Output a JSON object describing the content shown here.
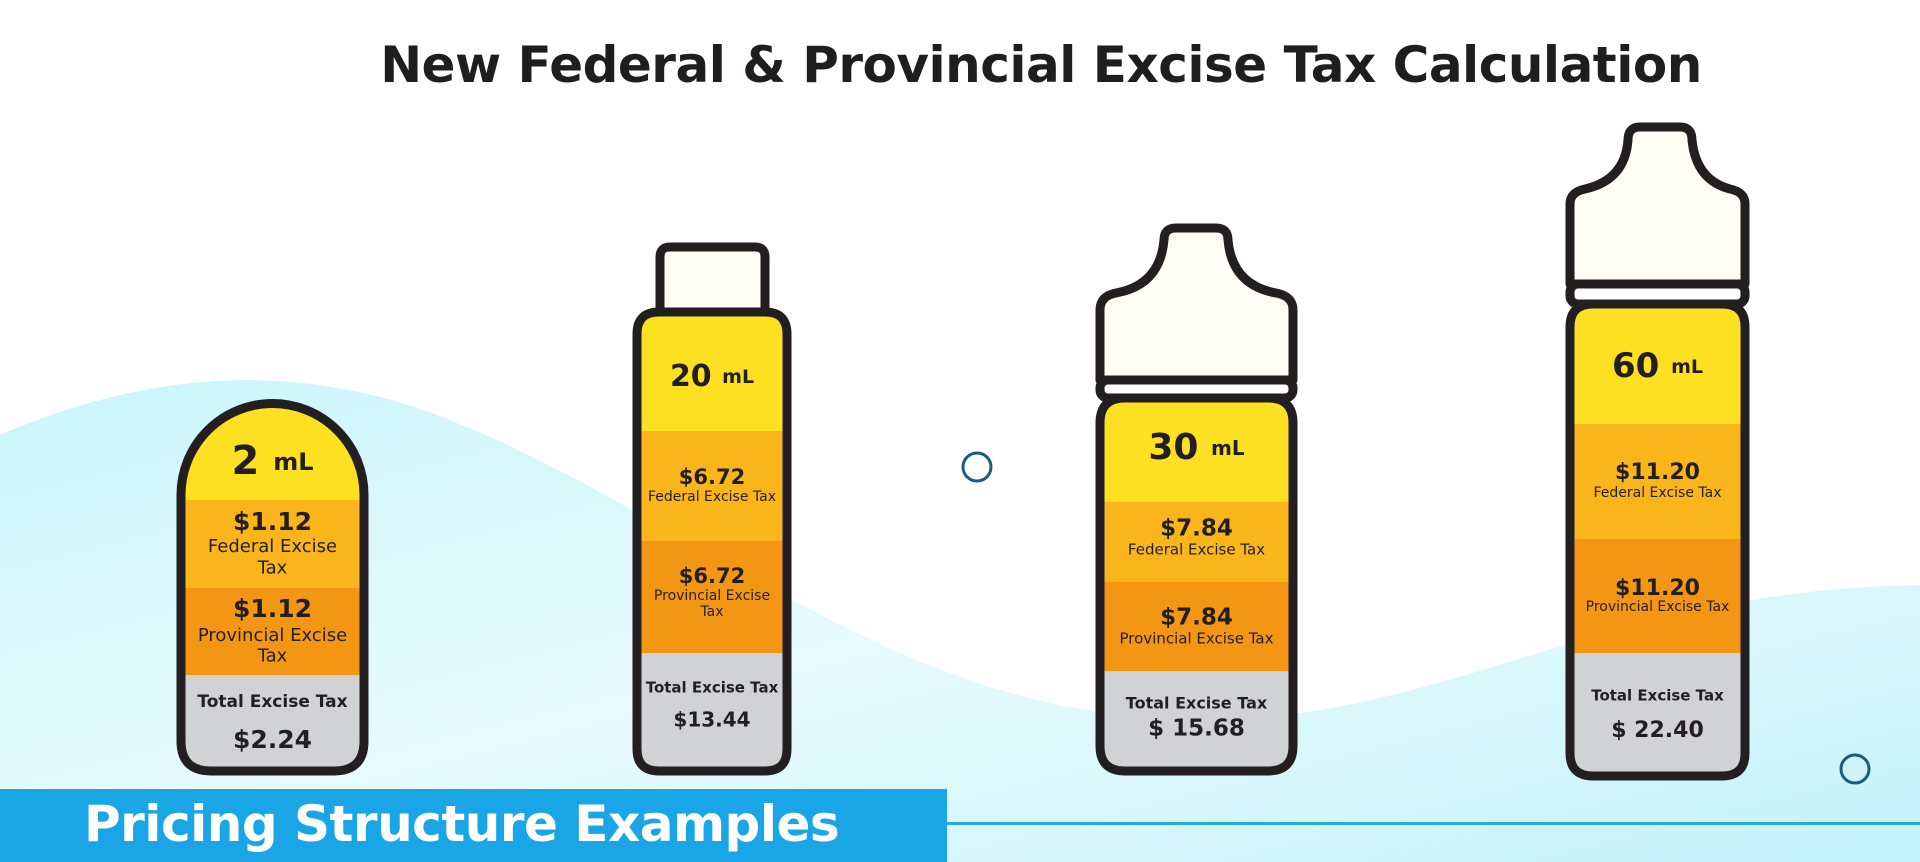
{
  "title": "New Federal & Provincial Excise Tax Calculation",
  "banner": "Pricing Structure Examples",
  "colors": {
    "volume": "#fde021",
    "federal": "#f9b51a",
    "provincial": "#f39614",
    "total": "#d1d2d4",
    "cap": "#fffdf5",
    "outline": "#231f20",
    "accent": "#1aa5e6"
  },
  "bottles": [
    {
      "volume": "2",
      "unit": "mL",
      "federal_amount": "$1.12",
      "federal_label": [
        "Federal Excise",
        "Tax"
      ],
      "provincial_amount": "$1.12",
      "provincial_label": [
        "Provincial Excise",
        "Tax"
      ],
      "total_label": "Total Excise Tax",
      "total_amount": "$2.24"
    },
    {
      "volume": "20",
      "unit": "mL",
      "federal_amount": "$6.72",
      "federal_label": [
        "Federal Excise Tax"
      ],
      "provincial_amount": "$6.72",
      "provincial_label": [
        "Provincial Excise",
        "Tax"
      ],
      "total_label": "Total Excise Tax",
      "total_amount": "$13.44"
    },
    {
      "volume": "30",
      "unit": "mL",
      "federal_amount": "$7.84",
      "federal_label": [
        "Federal Excise Tax"
      ],
      "provincial_amount": "$7.84",
      "provincial_label": [
        "Provincial Excise Tax"
      ],
      "total_label": "Total Excise Tax",
      "total_amount": "$ 15.68"
    },
    {
      "volume": "60",
      "unit": "mL",
      "federal_amount": "$11.20",
      "federal_label": [
        "Federal Excise Tax"
      ],
      "provincial_amount": "$11.20",
      "provincial_label": [
        "Provincial Excise Tax"
      ],
      "total_label": "Total Excise Tax",
      "total_amount": "$ 22.40"
    }
  ]
}
